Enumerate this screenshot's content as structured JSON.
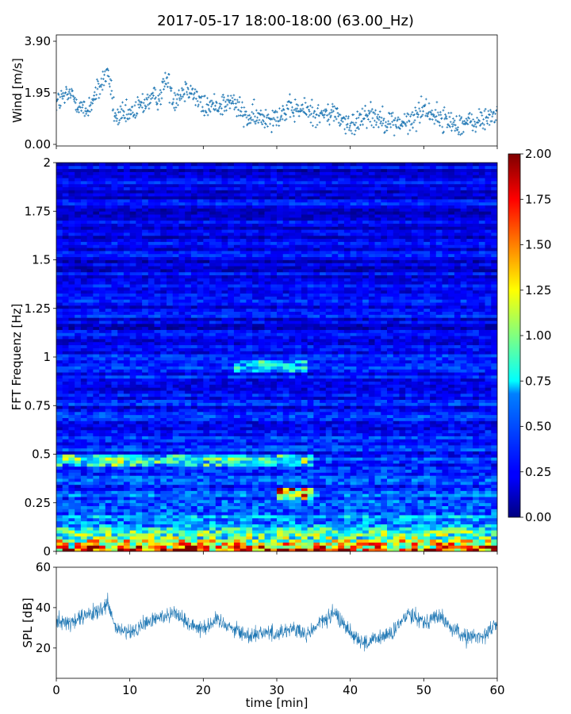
{
  "figure": {
    "title": "2017-05-17 18:00-18:00 (63.00_Hz)"
  },
  "chart_data": [
    {
      "type": "scatter",
      "panel": "wind",
      "ylabel": "Wind [m/s]",
      "xlim": [
        0,
        60
      ],
      "ylim": [
        0,
        3.9
      ],
      "yticks": [
        "0.00",
        "1.95",
        "3.90"
      ],
      "color": "#1f77b4",
      "marker": "+",
      "series": [
        {
          "x": [
            0,
            2,
            4,
            6,
            7,
            8,
            10,
            12,
            14,
            15,
            16,
            18,
            20,
            22,
            24,
            26,
            28,
            30,
            32,
            34,
            36,
            38,
            40,
            42,
            44,
            46,
            48,
            50,
            52,
            54,
            56,
            58,
            60
          ],
          "y": [
            1.6,
            1.9,
            1.2,
            2.2,
            2.8,
            1.0,
            1.1,
            1.6,
            1.8,
            2.5,
            1.7,
            2.2,
            1.4,
            1.5,
            1.6,
            1.0,
            1.0,
            1.1,
            1.3,
            1.3,
            1.1,
            1.2,
            0.6,
            1.2,
            1.0,
            0.8,
            0.8,
            1.4,
            1.0,
            0.8,
            0.8,
            0.9,
            1.2
          ]
        }
      ]
    },
    {
      "type": "heatmap",
      "panel": "spectrogram",
      "ylabel": "FFT Frequenz [Hz]",
      "xlim": [
        0,
        60
      ],
      "ylim": [
        0,
        2
      ],
      "yticks": [
        "0",
        "0.25",
        "0.5",
        "0.75",
        "1",
        "1.25",
        "1.5",
        "1.75",
        "2"
      ],
      "colormap": "jet",
      "clim": [
        0,
        2
      ],
      "colorbar_ticks": [
        "0.00",
        "0.25",
        "0.50",
        "0.75",
        "1.00",
        "1.25",
        "1.50",
        "1.75",
        "2.00"
      ],
      "z_profile": {
        "freq": [
          0,
          0.05,
          0.1,
          0.15,
          0.25,
          0.5,
          1,
          2
        ],
        "level": [
          1.8,
          1.2,
          0.8,
          0.55,
          0.4,
          0.3,
          0.25,
          0.2
        ]
      },
      "features": [
        {
          "t": [
            0,
            35
          ],
          "f": 0.47,
          "level": 0.9
        },
        {
          "t": [
            24,
            34
          ],
          "f": 0.95,
          "level": 0.7
        },
        {
          "t": [
            30,
            35
          ],
          "f": 0.3,
          "level": 1.6
        }
      ]
    },
    {
      "type": "line",
      "panel": "spl",
      "ylabel": "SPL [dB]",
      "xlabel": "time [min]",
      "xlim": [
        0,
        60
      ],
      "ylim": [
        5,
        60
      ],
      "yticks": [
        "20",
        "40",
        "60"
      ],
      "xticks": [
        "0",
        "10",
        "20",
        "30",
        "40",
        "50",
        "60"
      ],
      "color": "#1f77b4",
      "series": [
        {
          "x": [
            0,
            2,
            4,
            6,
            7,
            8,
            10,
            12,
            14,
            16,
            18,
            20,
            22,
            24,
            26,
            28,
            30,
            32,
            34,
            36,
            38,
            40,
            42,
            44,
            46,
            48,
            50,
            52,
            54,
            56,
            58,
            60
          ],
          "y": [
            34,
            32,
            36,
            38,
            42,
            30,
            27,
            32,
            35,
            38,
            32,
            30,
            34,
            30,
            26,
            28,
            27,
            30,
            26,
            33,
            37,
            28,
            22,
            25,
            28,
            38,
            33,
            36,
            29,
            25,
            26,
            32
          ]
        }
      ]
    }
  ]
}
